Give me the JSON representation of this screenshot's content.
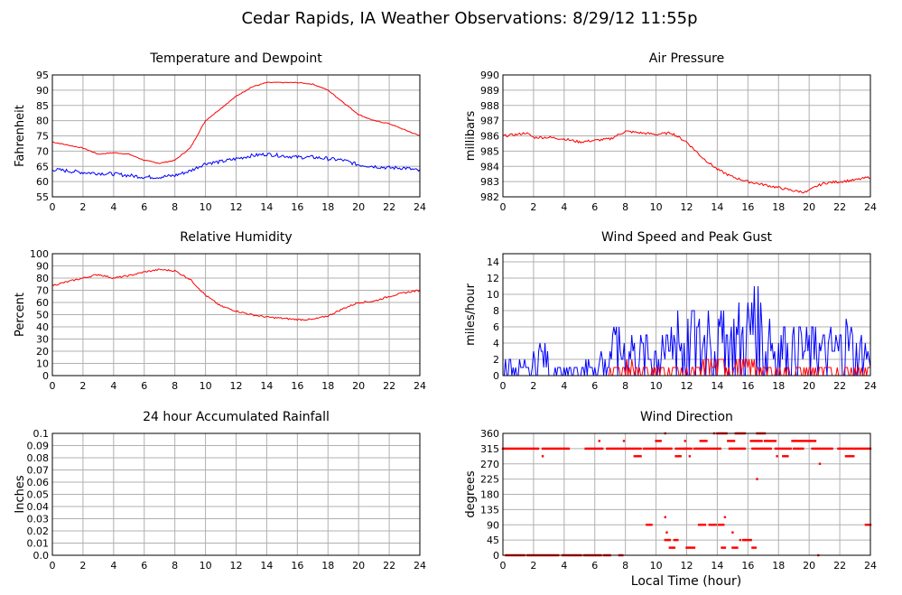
{
  "title": "Cedar Rapids, IA Weather Observations: 8/29/12 11:55p",
  "x_axis_label": "Local Time (hour)",
  "colors": {
    "red": "#ff0000",
    "blue": "#0000ff",
    "grid": "#b0b0b0",
    "frame": "#000000"
  },
  "chart_data": [
    {
      "id": "temp",
      "type": "line",
      "title": "Temperature and Dewpoint",
      "ylabel": "Fahrenheit",
      "xlim": [
        0,
        24
      ],
      "ylim": [
        55,
        95
      ],
      "xticks": [
        0,
        2,
        4,
        6,
        8,
        10,
        12,
        14,
        16,
        18,
        20,
        22,
        24
      ],
      "yticks": [
        55,
        60,
        65,
        70,
        75,
        80,
        85,
        90,
        95
      ],
      "grid": true,
      "series": [
        {
          "color": "#ff0000",
          "noise": 0.15,
          "points": [
            [
              0,
              73
            ],
            [
              1,
              72
            ],
            [
              2,
              71
            ],
            [
              3,
              69
            ],
            [
              4,
              69.5
            ],
            [
              5,
              69
            ],
            [
              6,
              67
            ],
            [
              7,
              66
            ],
            [
              8,
              67
            ],
            [
              9,
              71
            ],
            [
              10,
              80
            ],
            [
              11,
              84
            ],
            [
              12,
              88
            ],
            [
              13,
              91
            ],
            [
              14,
              92.5
            ],
            [
              15,
              92.5
            ],
            [
              16,
              92.5
            ],
            [
              17,
              92
            ],
            [
              18,
              90
            ],
            [
              19,
              86
            ],
            [
              20,
              82
            ],
            [
              21,
              80
            ],
            [
              22,
              79
            ],
            [
              23,
              77
            ],
            [
              24,
              75
            ]
          ]
        },
        {
          "color": "#0000ff",
          "noise": 0.6,
          "points": [
            [
              0,
              64
            ],
            [
              2,
              63
            ],
            [
              4,
              62.5
            ],
            [
              5,
              62
            ],
            [
              6,
              61.5
            ],
            [
              7,
              61.5
            ],
            [
              8,
              62
            ],
            [
              9,
              63.5
            ],
            [
              10,
              66
            ],
            [
              11,
              66.5
            ],
            [
              12,
              67.5
            ],
            [
              13,
              68.5
            ],
            [
              14,
              69
            ],
            [
              15,
              68.5
            ],
            [
              16,
              68
            ],
            [
              17,
              68
            ],
            [
              18,
              67.5
            ],
            [
              19,
              67
            ],
            [
              20,
              65.5
            ],
            [
              21,
              65
            ],
            [
              22,
              64.5
            ],
            [
              23,
              64.5
            ],
            [
              24,
              63.5
            ]
          ]
        }
      ]
    },
    {
      "id": "pressure",
      "type": "line",
      "title": "Air Pressure",
      "ylabel": "millibars",
      "xlim": [
        0,
        24
      ],
      "ylim": [
        982,
        990
      ],
      "xticks": [
        0,
        2,
        4,
        6,
        8,
        10,
        12,
        14,
        16,
        18,
        20,
        22,
        24
      ],
      "yticks": [
        982,
        983,
        984,
        985,
        986,
        987,
        988,
        989,
        990
      ],
      "grid": true,
      "series": [
        {
          "color": "#ff0000",
          "noise": 0.08,
          "points": [
            [
              0,
              986
            ],
            [
              1,
              986.1
            ],
            [
              1.5,
              986.2
            ],
            [
              2,
              985.9
            ],
            [
              3,
              985.9
            ],
            [
              4,
              985.8
            ],
            [
              5,
              985.6
            ],
            [
              6,
              985.7
            ],
            [
              7,
              985.8
            ],
            [
              8,
              986.3
            ],
            [
              9,
              986.2
            ],
            [
              10,
              986.1
            ],
            [
              11,
              986.2
            ],
            [
              12,
              985.6
            ],
            [
              13,
              984.6
            ],
            [
              14,
              983.8
            ],
            [
              15,
              983.3
            ],
            [
              16,
              983
            ],
            [
              17,
              982.8
            ],
            [
              18,
              982.6
            ],
            [
              19,
              982.4
            ],
            [
              19.8,
              982.3
            ],
            [
              20.5,
              982.7
            ],
            [
              21,
              982.9
            ],
            [
              22,
              983
            ],
            [
              23,
              983.1
            ],
            [
              24,
              983.3
            ]
          ]
        }
      ]
    },
    {
      "id": "humidity",
      "type": "line",
      "title": "Relative Humidity",
      "ylabel": "Percent",
      "xlim": [
        0,
        24
      ],
      "ylim": [
        0,
        100
      ],
      "xticks": [
        0,
        2,
        4,
        6,
        8,
        10,
        12,
        14,
        16,
        18,
        20,
        22,
        24
      ],
      "yticks": [
        0,
        10,
        20,
        30,
        40,
        50,
        60,
        70,
        80,
        90,
        100
      ],
      "grid": true,
      "series": [
        {
          "color": "#ff0000",
          "noise": 0.7,
          "points": [
            [
              0,
              74
            ],
            [
              1,
              77
            ],
            [
              2,
              80
            ],
            [
              3,
              83
            ],
            [
              4,
              80
            ],
            [
              5,
              82
            ],
            [
              6,
              85
            ],
            [
              7,
              87
            ],
            [
              8,
              86
            ],
            [
              9,
              79
            ],
            [
              10,
              66
            ],
            [
              11,
              57
            ],
            [
              12,
              53
            ],
            [
              13,
              50
            ],
            [
              14,
              48
            ],
            [
              15,
              47
            ],
            [
              16,
              46
            ],
            [
              17,
              46
            ],
            [
              18,
              49
            ],
            [
              19,
              55
            ],
            [
              20,
              60
            ],
            [
              21,
              61
            ],
            [
              22,
              65
            ],
            [
              23,
              68
            ],
            [
              24,
              70
            ]
          ]
        }
      ]
    },
    {
      "id": "wind",
      "type": "line",
      "title": "Wind Speed and Peak Gust",
      "ylabel": "miles/hour",
      "xlim": [
        0,
        24
      ],
      "ylim": [
        0,
        15
      ],
      "xticks": [
        0,
        2,
        4,
        6,
        8,
        10,
        12,
        14,
        16,
        18,
        20,
        22,
        24
      ],
      "yticks": [
        0,
        2,
        4,
        6,
        8,
        10,
        12,
        14
      ],
      "grid": true,
      "series": [
        {
          "color": "#0000ff",
          "name": "speed",
          "hourly_max": [
            2,
            2,
            4,
            1,
            1,
            2,
            3,
            6,
            5,
            5,
            5,
            8,
            8,
            8,
            8,
            9,
            11,
            7,
            6,
            6,
            6,
            6,
            7,
            5
          ]
        },
        {
          "color": "#ff0000",
          "name": "gust",
          "hourly_max": [
            0,
            0,
            0,
            0,
            0,
            0,
            0,
            1,
            2,
            1,
            1,
            1,
            1,
            2,
            2,
            2,
            2,
            1,
            1,
            1,
            1,
            1,
            1,
            1
          ]
        }
      ]
    },
    {
      "id": "rain",
      "type": "line",
      "title": "24 hour Accumulated Rainfall",
      "ylabel": "Inches",
      "xlim": [
        0,
        24
      ],
      "ylim": [
        0,
        0.1
      ],
      "xticks": [
        0,
        2,
        4,
        6,
        8,
        10,
        12,
        14,
        16,
        18,
        20,
        22,
        24
      ],
      "yticks": [
        "0.0",
        "0.01",
        "0.02",
        "0.03",
        "0.04",
        "0.05",
        "0.06",
        "0.07",
        "0.08",
        "0.09",
        "0.1"
      ],
      "grid": true,
      "series": [
        {
          "color": "#ff0000",
          "points": [
            [
              0,
              0
            ],
            [
              24,
              0
            ]
          ]
        }
      ]
    },
    {
      "id": "winddir",
      "type": "scatter",
      "title": "Wind Direction",
      "ylabel": "degrees",
      "xlim": [
        0,
        24
      ],
      "ylim": [
        0,
        360
      ],
      "xticks": [
        0,
        2,
        4,
        6,
        8,
        10,
        12,
        14,
        16,
        18,
        20,
        22,
        24
      ],
      "yticks": [
        0,
        45,
        90,
        135,
        180,
        225,
        270,
        315,
        360
      ],
      "grid": true,
      "series": [
        {
          "color": "#ff0000",
          "segments": [
            [
              0,
              1.5,
              315
            ],
            [
              1.6,
              2.0,
              315
            ],
            [
              2.1,
              2.3,
              315
            ],
            [
              2.6,
              4.3,
              315
            ],
            [
              5.4,
              6.5,
              315
            ],
            [
              6.8,
              9.0,
              315
            ],
            [
              9.2,
              11.0,
              315
            ],
            [
              11.3,
              12.3,
              315
            ],
            [
              12.5,
              14.2,
              315
            ],
            [
              14.8,
              15.8,
              315
            ],
            [
              16.3,
              17.5,
              315
            ],
            [
              17.8,
              18.8,
              315
            ],
            [
              19.0,
              19.6,
              315
            ],
            [
              20.2,
              21.5,
              315
            ],
            [
              21.9,
              24.0,
              315
            ],
            [
              0.2,
              1.4,
              0
            ],
            [
              1.6,
              2.3,
              0
            ],
            [
              2.4,
              3.6,
              0
            ],
            [
              3.9,
              5.1,
              0
            ],
            [
              5.3,
              6.4,
              0
            ],
            [
              6.6,
              7.0,
              0
            ],
            [
              7.6,
              7.8,
              0
            ],
            [
              9.4,
              9.7,
              90
            ],
            [
              10.6,
              10.9,
              45
            ],
            [
              10.9,
              11.2,
              22.5
            ],
            [
              11.2,
              11.4,
              45
            ],
            [
              12.0,
              12.5,
              22.5
            ],
            [
              12.8,
              13.2,
              90
            ],
            [
              13.5,
              13.9,
              90
            ],
            [
              14.1,
              14.4,
              90
            ],
            [
              14.3,
              14.5,
              22.5
            ],
            [
              15.0,
              15.3,
              22.5
            ],
            [
              15.7,
              16.2,
              45
            ],
            [
              16.3,
              16.5,
              22.5
            ],
            [
              14.0,
              14.6,
              360
            ],
            [
              15.2,
              15.8,
              360
            ],
            [
              16.6,
              17.1,
              360
            ],
            [
              18.9,
              19.9,
              337.5
            ],
            [
              12.9,
              13.3,
              337.5
            ],
            [
              14.7,
              15.1,
              337.5
            ],
            [
              10.0,
              10.3,
              337.5
            ],
            [
              16.2,
              16.9,
              337.5
            ],
            [
              17.1,
              17.8,
              337.5
            ],
            [
              20.0,
              20.4,
              337.5
            ],
            [
              11.3,
              11.6,
              292.5
            ],
            [
              8.6,
              9.0,
              292.5
            ],
            [
              18.3,
              18.6,
              292.5
            ],
            [
              22.4,
              22.9,
              292.5
            ],
            [
              23.7,
              24.0,
              90
            ]
          ],
          "points": [
            [
              2.6,
              292.5
            ],
            [
              6.3,
              337.5
            ],
            [
              7.9,
              337.5
            ],
            [
              10.6,
              360
            ],
            [
              11.9,
              337.5
            ],
            [
              12.2,
              292.5
            ],
            [
              13.8,
              360
            ],
            [
              14.5,
              112.5
            ],
            [
              15.0,
              67.5
            ],
            [
              15.5,
              45
            ],
            [
              16.6,
              225
            ],
            [
              20.7,
              270
            ],
            [
              20.6,
              0
            ],
            [
              10.6,
              112.5
            ],
            [
              10.7,
              67.5
            ],
            [
              11.9,
              315
            ],
            [
              17.9,
              292.5
            ]
          ]
        }
      ]
    }
  ]
}
